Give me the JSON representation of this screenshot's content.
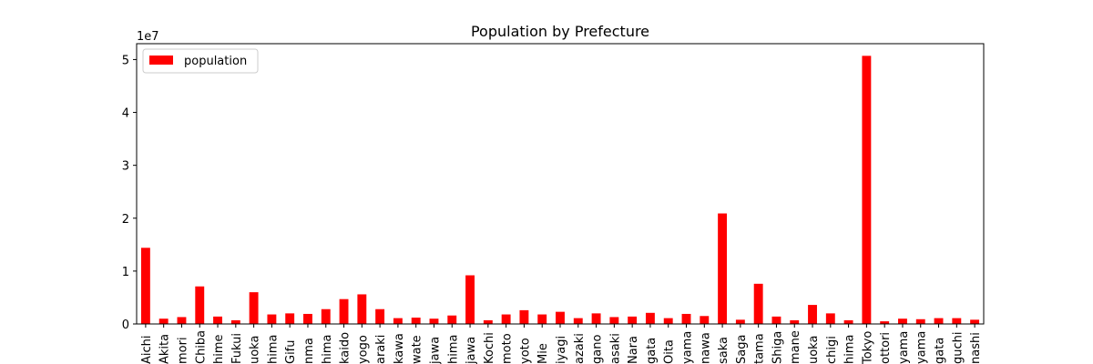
{
  "chart_data": {
    "type": "bar",
    "title": "Population by Prefecture",
    "xlabel": "",
    "ylabel": "",
    "y_offset_text": "1e7",
    "ylim": [
      0,
      5.3
    ],
    "yticks": [
      0,
      1,
      2,
      3,
      4,
      5
    ],
    "legend": {
      "position": "top-left",
      "entries": [
        "population"
      ]
    },
    "grid": false,
    "bar_color": "#ff0000",
    "categories": [
      "Aichi",
      "Akita",
      "Aomori",
      "Chiba",
      "Ehime",
      "Fukui",
      "Fukuoka",
      "Fukushima",
      "Gifu",
      "Gunma",
      "Hiroshima",
      "Hokkaido",
      "Hyogo",
      "Ibaraki",
      "Ishikawa",
      "Iwate",
      "Kagawa",
      "Kagoshima",
      "Kanagawa",
      "Kochi",
      "Kumamoto",
      "Kyoto",
      "Mie",
      "Miyagi",
      "Miyazaki",
      "Nagano",
      "Nagasaki",
      "Nara",
      "Niigata",
      "Oita",
      "Okayama",
      "Okinawa",
      "Osaka",
      "Saga",
      "Saitama",
      "Shiga",
      "Shimane",
      "Shizuoka",
      "Tochigi",
      "Tokushima",
      "Tokyo",
      "Tottori",
      "Toyama",
      "Wakayama",
      "Yamagata",
      "Yamaguchi",
      "Yamanashi"
    ],
    "tick_labels_visible": [
      "Aichi",
      "Akita",
      "mori",
      "Chiba",
      "hime",
      "Fukui",
      "uoka",
      "hima",
      "Gifu",
      "nma",
      "hima",
      "kaido",
      "yogo",
      "araki",
      "kawa",
      "wate",
      "jawa",
      "hima",
      "jawa",
      "Kochi",
      "moto",
      "yoto",
      "Mie",
      "iyagi",
      "azaki",
      "gano",
      "asaki",
      "Nara",
      "gata",
      "Oita",
      "yama",
      "nawa",
      "saka",
      "Saga",
      "tama",
      "Shiga",
      "mane",
      "uoka",
      "chigi",
      "hima",
      "Tokyo",
      "ottori",
      "yama",
      "yama",
      "gata",
      "guchi",
      "nashi"
    ],
    "series": [
      {
        "name": "population",
        "values": [
          1.44,
          0.1,
          0.13,
          0.71,
          0.14,
          0.07,
          0.6,
          0.18,
          0.2,
          0.19,
          0.28,
          0.47,
          0.56,
          0.28,
          0.11,
          0.12,
          0.1,
          0.16,
          0.92,
          0.07,
          0.18,
          0.26,
          0.18,
          0.23,
          0.11,
          0.2,
          0.13,
          0.14,
          0.21,
          0.11,
          0.19,
          0.15,
          2.09,
          0.08,
          0.76,
          0.14,
          0.07,
          0.36,
          0.2,
          0.07,
          5.07,
          0.05,
          0.1,
          0.09,
          0.11,
          0.11,
          0.08
        ]
      }
    ]
  }
}
